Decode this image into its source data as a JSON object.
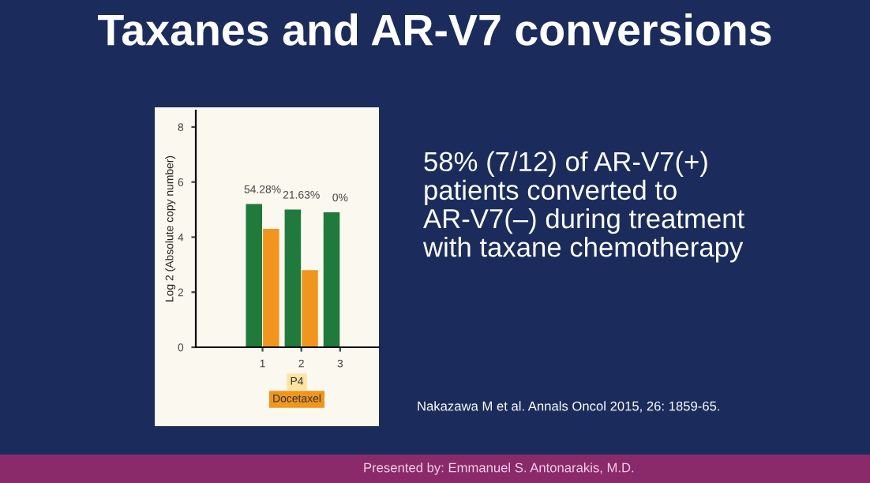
{
  "chart_data": {
    "type": "bar",
    "title": "Taxanes and AR-V7 conversions",
    "ylabel": "Log 2 (Absolute copy number)",
    "categories": [
      "1",
      "2",
      "3"
    ],
    "series": [
      {
        "color": "#1f7a3c",
        "values": [
          5.2,
          5.0,
          4.9
        ]
      },
      {
        "color": "#f0961e",
        "values": [
          4.3,
          2.8,
          null
        ]
      }
    ],
    "ylim": [
      0,
      8.6
    ],
    "yticks": [
      0,
      2,
      4,
      6,
      8
    ],
    "grid": false,
    "legend": false,
    "annotations": [
      {
        "text": "54.28%",
        "x": "1",
        "y": 5.2
      },
      {
        "text": "21.63%",
        "x": "2",
        "y": 5.0
      },
      {
        "text": "0%",
        "x": "3",
        "y": 4.9
      },
      "P4",
      "Docetaxel",
      "58% (7/12) of AR-V7(+)\npatients converted to\nAR-V7(–) during treatment\nwith taxane chemotherapy",
      "Nakazawa M et al. Annals Oncol 2015, 26: 1859-65.",
      "Presented by: Emmanuel S. Antonarakis, M.D."
    ]
  }
}
